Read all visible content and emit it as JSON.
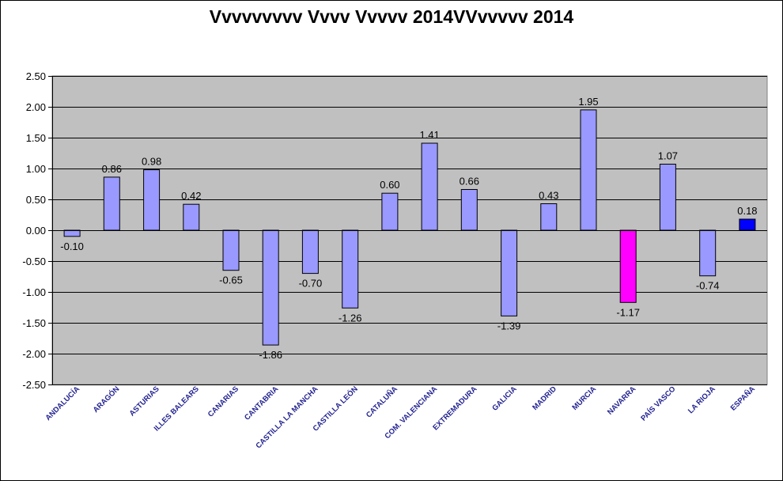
{
  "chart_data": {
    "type": "bar",
    "title": "Vvvvvvvvv Vvvv Vvvvv 2014VVvvvvv 2014",
    "xlabel": "",
    "ylabel": "",
    "ylim": [
      -2.5,
      2.5
    ],
    "yticks": [
      "2.50",
      "2.00",
      "1.50",
      "1.00",
      "0.50",
      "0.00",
      "-0.50",
      "-1.00",
      "-1.50",
      "-2.00",
      "-2.50"
    ],
    "ytick_values": [
      2.5,
      2.0,
      1.5,
      1.0,
      0.5,
      0.0,
      -0.5,
      -1.0,
      -1.5,
      -2.0,
      -2.5
    ],
    "grid": true,
    "legend": "none",
    "categories": [
      "ANDALUCÍA",
      "ARAGÓN",
      "ASTURIAS",
      "ILLES BALEARS",
      "CANARIAS",
      "CANTABRIA",
      "CASTILLA LA MANCHA",
      "CASTILLA LEÓN",
      "CATALUÑA",
      "COM. VALENCIANA",
      "EXTREMADURA",
      "GALICIA",
      "MADRID",
      "MURCIA",
      "NAVARRA",
      "PAÍS VASCO",
      "LA RIOJA",
      "ESPAÑA"
    ],
    "values": [
      -0.1,
      0.86,
      0.98,
      0.42,
      -0.65,
      -1.86,
      -0.7,
      -1.26,
      0.6,
      1.41,
      0.66,
      -1.39,
      0.43,
      1.95,
      -1.17,
      1.07,
      -0.74,
      0.18
    ],
    "data_labels": [
      "-0.10",
      "0.86",
      "0.98",
      "0.42",
      "-0.65",
      "-1.86",
      "-0.70",
      "-1.26",
      "0.60",
      "1.41",
      "0.66",
      "-1.39",
      "0.43",
      "1.95",
      "-1.17",
      "1.07",
      "-0.74",
      "0.18"
    ],
    "bar_colors": [
      "#9999ff",
      "#9999ff",
      "#9999ff",
      "#9999ff",
      "#9999ff",
      "#9999ff",
      "#9999ff",
      "#9999ff",
      "#9999ff",
      "#9999ff",
      "#9999ff",
      "#9999ff",
      "#9999ff",
      "#9999ff",
      "#ff00ff",
      "#9999ff",
      "#9999ff",
      "#0000ff"
    ],
    "colors": {
      "plot_background": "#c0c0c0",
      "gridline": "#000000",
      "category_label": "#1f1f8f"
    }
  }
}
